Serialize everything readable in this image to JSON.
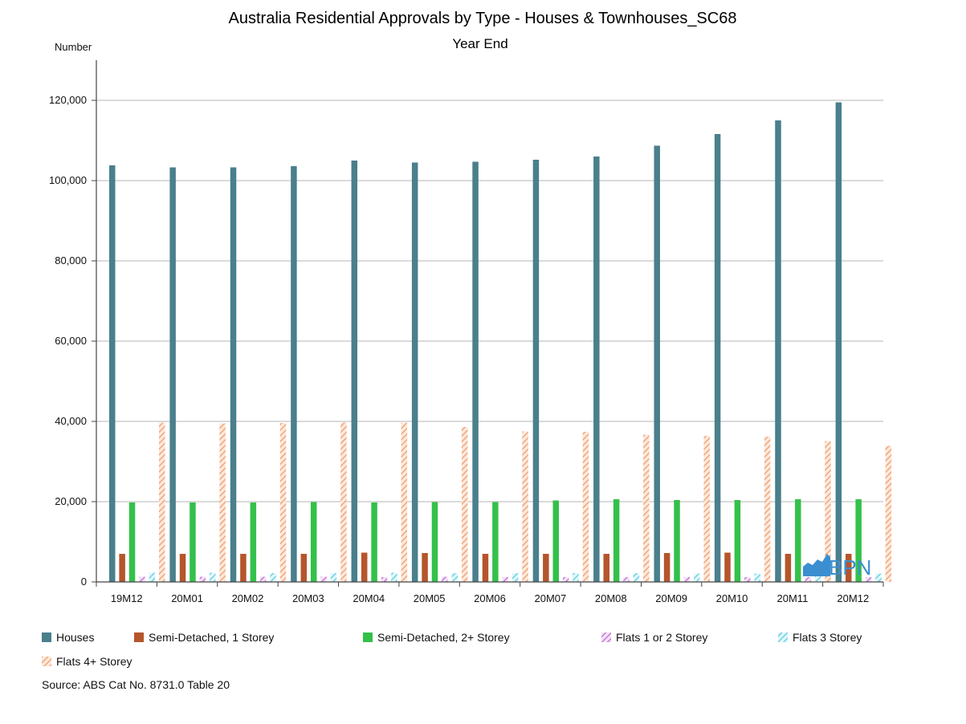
{
  "chart_data": {
    "type": "bar",
    "title": "Australia Residential Approvals by Type - Houses & Townhouses_SC68",
    "subtitle": "Year End",
    "ylabel": "Number",
    "xlabel": "",
    "ylim": [
      0,
      130000
    ],
    "yticks": [
      0,
      20000,
      40000,
      60000,
      80000,
      100000,
      120000
    ],
    "ytick_labels": [
      "0",
      "20,000",
      "40,000",
      "60,000",
      "80,000",
      "100,000",
      "120,000"
    ],
    "grid": true,
    "legend_position": "bottom",
    "categories": [
      "19M12",
      "20M01",
      "20M02",
      "20M03",
      "20M04",
      "20M05",
      "20M06",
      "20M07",
      "20M08",
      "20M09",
      "20M10",
      "20M11",
      "20M12"
    ],
    "series": [
      {
        "name": "Houses",
        "color": "#4a7f8c",
        "pattern": "solid",
        "values": [
          103800,
          103300,
          103300,
          103600,
          105000,
          104500,
          104700,
          105200,
          106000,
          108700,
          111600,
          115000,
          119500
        ]
      },
      {
        "name": "Semi-Detached, 1 Storey",
        "color": "#b5552b",
        "pattern": "solid",
        "values": [
          7000,
          7000,
          7000,
          7000,
          7300,
          7200,
          7000,
          7000,
          7000,
          7200,
          7300,
          7000,
          7000
        ]
      },
      {
        "name": "Semi-Detached, 2+ Storey",
        "color": "#33c14a",
        "pattern": "solid",
        "values": [
          19800,
          19800,
          19800,
          19900,
          19800,
          19900,
          19900,
          20300,
          20600,
          20400,
          20400,
          20600,
          20600
        ]
      },
      {
        "name": "Flats 1 or 2 Storey",
        "color": "#c77ad8",
        "pattern": "hatch",
        "values": [
          1300,
          1300,
          1300,
          1300,
          1200,
          1300,
          1200,
          1200,
          1200,
          1200,
          1200,
          1200,
          1200
        ]
      },
      {
        "name": "Flats 3 Storey",
        "color": "#6bd3e6",
        "pattern": "hatch",
        "values": [
          2300,
          2300,
          2200,
          2200,
          2300,
          2200,
          2200,
          2200,
          2200,
          2100,
          2100,
          2100,
          2100
        ]
      },
      {
        "name": "Flats 4+ Storey",
        "color": "#f2a57a",
        "pattern": "hatch",
        "values": [
          39700,
          39500,
          39600,
          39700,
          39700,
          38600,
          37500,
          37400,
          36700,
          36400,
          36200,
          35100,
          33900
        ]
      }
    ],
    "source": "Source: ABS Cat No. 8731.0 Table 20",
    "logo_text": "BPN"
  }
}
